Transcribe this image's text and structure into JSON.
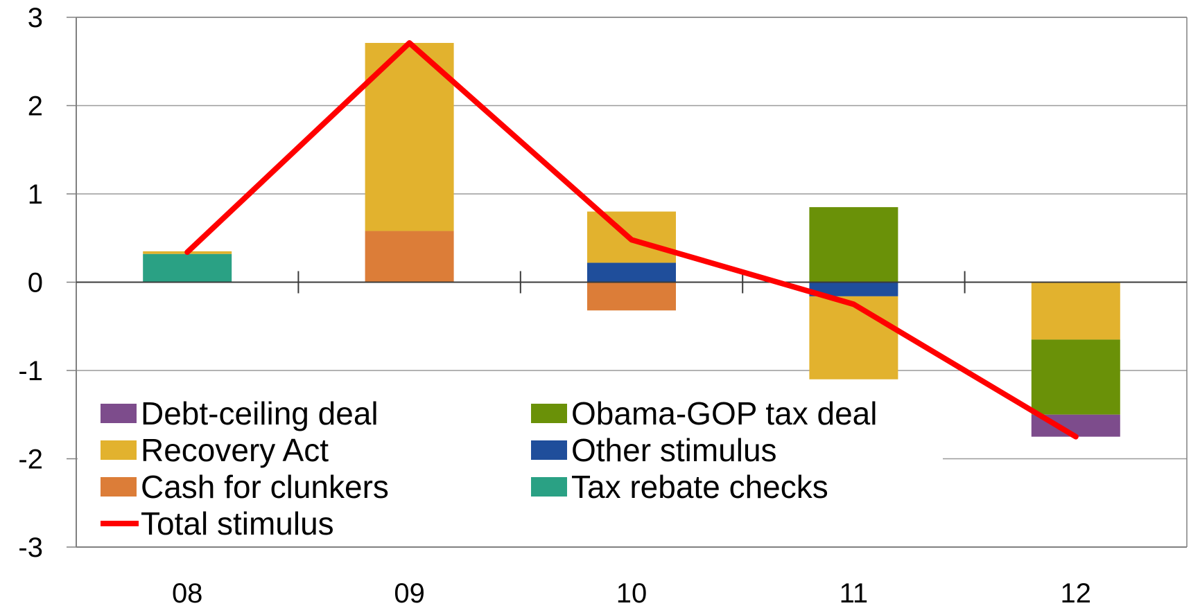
{
  "chart_data": {
    "type": "bar",
    "stacked": true,
    "categories": [
      "08",
      "09",
      "10",
      "11",
      "12"
    ],
    "ylim": [
      -3,
      3
    ],
    "yticks": [
      3,
      2,
      1,
      0,
      -1,
      -2,
      -3
    ],
    "grid": true,
    "legend_position": "bottom-left",
    "series": [
      {
        "name": "Tax rebate checks",
        "kind": "bar",
        "color": "#2aa184",
        "values": [
          0.32,
          0,
          0,
          0,
          0
        ]
      },
      {
        "name": "Cash for clunkers",
        "kind": "bar",
        "color": "#dc7d38",
        "values": [
          0,
          0.58,
          -0.32,
          0,
          0
        ]
      },
      {
        "name": "Other stimulus",
        "kind": "bar",
        "color": "#1f4e9b",
        "values": [
          0,
          0,
          0.22,
          -0.16,
          0
        ]
      },
      {
        "name": "Recovery Act",
        "kind": "bar",
        "color": "#e2b22e",
        "values": [
          0.03,
          2.13,
          0.58,
          -0.94,
          -0.65
        ]
      },
      {
        "name": "Obama-GOP tax deal",
        "kind": "bar",
        "color": "#6a9108",
        "values": [
          0,
          0,
          0,
          0.85,
          -0.85
        ]
      },
      {
        "name": "Debt-ceiling deal",
        "kind": "bar",
        "color": "#7d4c8c",
        "values": [
          0,
          0,
          0,
          0,
          -0.25
        ]
      },
      {
        "name": "Total stimulus",
        "kind": "line",
        "color": "#ff0000",
        "values": [
          0.34,
          2.71,
          0.48,
          -0.25,
          -1.75
        ]
      }
    ],
    "legend_order": [
      "Debt-ceiling deal",
      "Obama-GOP tax deal",
      "Recovery Act",
      "Other stimulus",
      "Cash for clunkers",
      "Tax rebate checks",
      "Total stimulus"
    ]
  }
}
